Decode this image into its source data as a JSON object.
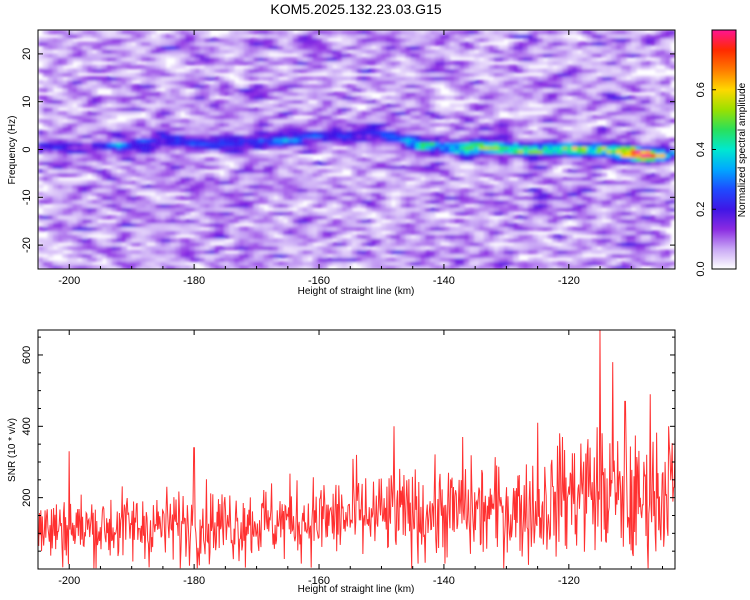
{
  "chart_data": [
    {
      "type": "heatmap",
      "title": "KOM5.2025.132.23.03.G15",
      "xlabel": "Height of straight line (km)",
      "ylabel": "Frequency (Hz)",
      "xlim": [
        -205,
        -103
      ],
      "ylim": [
        -25,
        25
      ],
      "x_ticks": [
        -200,
        -180,
        -160,
        -140,
        -120
      ],
      "y_ticks": [
        -20,
        -10,
        0,
        10,
        20
      ],
      "colorbar": {
        "label": "Normalized spectral amplitude",
        "range": [
          0.0,
          0.8
        ],
        "ticks": [
          0.0,
          0.2,
          0.4,
          0.6
        ],
        "colors": [
          "#ffffff",
          "#c9a8f5",
          "#8a2be2",
          "#3f16e6",
          "#1e4bff",
          "#00a8ff",
          "#00e8d0",
          "#2ae05a",
          "#9be000",
          "#ffd800",
          "#ff7a00",
          "#ff2a00",
          "#ff1493"
        ]
      },
      "ridge": {
        "description_free": true,
        "points": [
          {
            "x": -200,
            "y": 0.5,
            "v": 0.12
          },
          {
            "x": -192,
            "y": 1.0,
            "v": 0.14
          },
          {
            "x": -184,
            "y": 2.0,
            "v": 0.18
          },
          {
            "x": -176,
            "y": 1.5,
            "v": 0.14
          },
          {
            "x": -166,
            "y": 2.0,
            "v": 0.22
          },
          {
            "x": -158,
            "y": 3.0,
            "v": 0.15
          },
          {
            "x": -150,
            "y": 3.5,
            "v": 0.14
          },
          {
            "x": -144,
            "y": 1.0,
            "v": 0.3
          },
          {
            "x": -138,
            "y": 0.5,
            "v": 0.3
          },
          {
            "x": -132,
            "y": 0.5,
            "v": 0.46
          },
          {
            "x": -124,
            "y": 0.0,
            "v": 0.35
          },
          {
            "x": -114,
            "y": 0.0,
            "v": 0.45
          },
          {
            "x": -108,
            "y": -1.0,
            "v": 0.78
          },
          {
            "x": -104,
            "y": -1.0,
            "v": 0.25
          }
        ]
      }
    },
    {
      "type": "line",
      "xlabel": "Height of straight line (km)",
      "ylabel": "SNR (10 * v/v)",
      "xlim": [
        -205,
        -103
      ],
      "ylim": [
        0,
        670
      ],
      "x_ticks": [
        -200,
        -180,
        -160,
        -140,
        -120
      ],
      "y_ticks": [
        200,
        400,
        600
      ],
      "color": "#ff3030",
      "baseline_segments": [
        {
          "x": -205,
          "mean": 110,
          "spread": 110
        },
        {
          "x": -170,
          "mean": 130,
          "spread": 120
        },
        {
          "x": -150,
          "mean": 150,
          "spread": 140
        },
        {
          "x": -125,
          "mean": 170,
          "spread": 160
        },
        {
          "x": -117,
          "mean": 230,
          "spread": 200
        },
        {
          "x": -110,
          "mean": 180,
          "spread": 200
        },
        {
          "x": -103,
          "mean": 230,
          "spread": 200
        }
      ],
      "peaks": [
        {
          "x": -200,
          "y": 330
        },
        {
          "x": -180,
          "y": 340
        },
        {
          "x": -154,
          "y": 320
        },
        {
          "x": -148,
          "y": 400
        },
        {
          "x": -137,
          "y": 370
        },
        {
          "x": -125,
          "y": 410
        },
        {
          "x": -121,
          "y": 370
        },
        {
          "x": -115,
          "y": 670
        },
        {
          "x": -113,
          "y": 580
        },
        {
          "x": -111,
          "y": 470
        },
        {
          "x": -107,
          "y": 490
        },
        {
          "x": -104,
          "y": 400
        }
      ]
    }
  ]
}
